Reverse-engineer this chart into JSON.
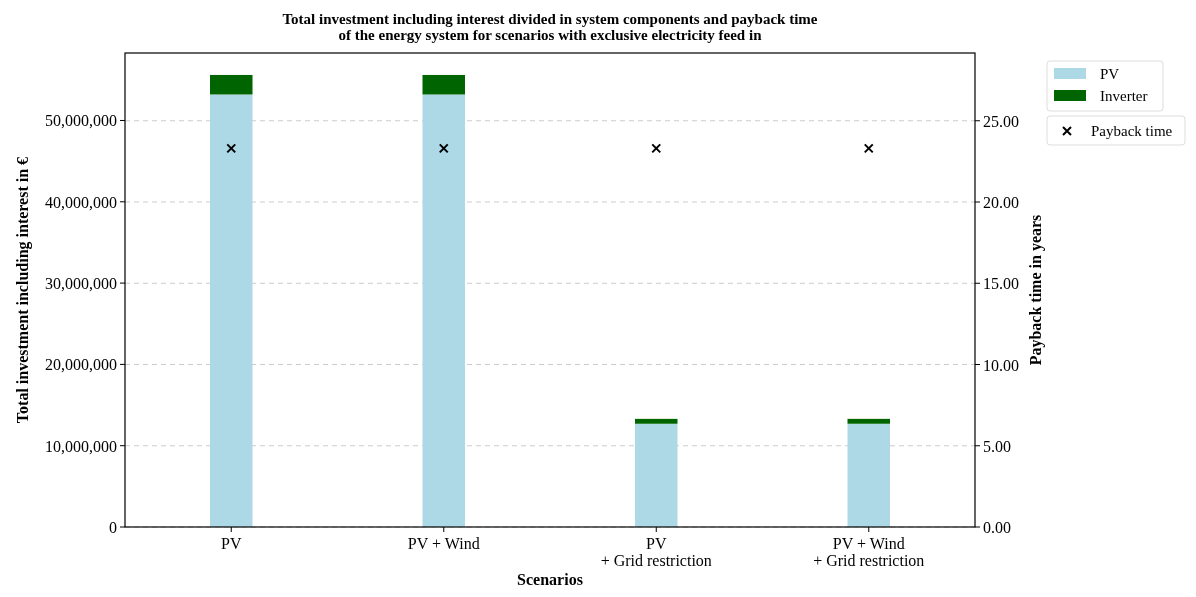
{
  "chart_data": {
    "type": "bar",
    "title": "Total investment including interest divided in system components and payback time\nof the energy system for scenarios with exclusive electricity feed in",
    "xlabel": "Scenarios",
    "ylabel": "Total investment including interest in €",
    "y2label": "Payback time in years",
    "categories": [
      "PV",
      "PV + Wind",
      "PV\n+ Grid restriction",
      "PV + Wind\n+ Grid restriction"
    ],
    "stacked": true,
    "series": [
      {
        "name": "PV",
        "color": "#add8e6",
        "values": [
          53200000,
          53200000,
          12700000,
          12700000
        ]
      },
      {
        "name": "Inverter",
        "color": "#006400",
        "values": [
          2400000,
          2400000,
          600000,
          600000
        ]
      },
      {
        "name": "Payback time",
        "type": "scatter",
        "axis": "y2",
        "marker": "cross",
        "color": "#000000",
        "values": [
          23.3,
          23.3,
          23.3,
          23.3
        ]
      }
    ],
    "ylim": [
      0,
      58300000
    ],
    "yticks": [
      {
        "value": 0,
        "label": "0"
      },
      {
        "value": 10000000,
        "label": "10,000,000"
      },
      {
        "value": 20000000,
        "label": "20,000,000"
      },
      {
        "value": 30000000,
        "label": "30,000,000"
      },
      {
        "value": 40000000,
        "label": "40,000,000"
      },
      {
        "value": 50000000,
        "label": "50,000,000"
      }
    ],
    "y2lim": [
      0,
      29.17
    ],
    "y2ticks": [
      {
        "value": 0,
        "label": "0.00"
      },
      {
        "value": 5,
        "label": "5.00"
      },
      {
        "value": 10,
        "label": "10.00"
      },
      {
        "value": 15,
        "label": "15.00"
      },
      {
        "value": 20,
        "label": "20.00"
      },
      {
        "value": 25,
        "label": "25.00"
      }
    ],
    "grid": "y2",
    "legend": "right"
  }
}
